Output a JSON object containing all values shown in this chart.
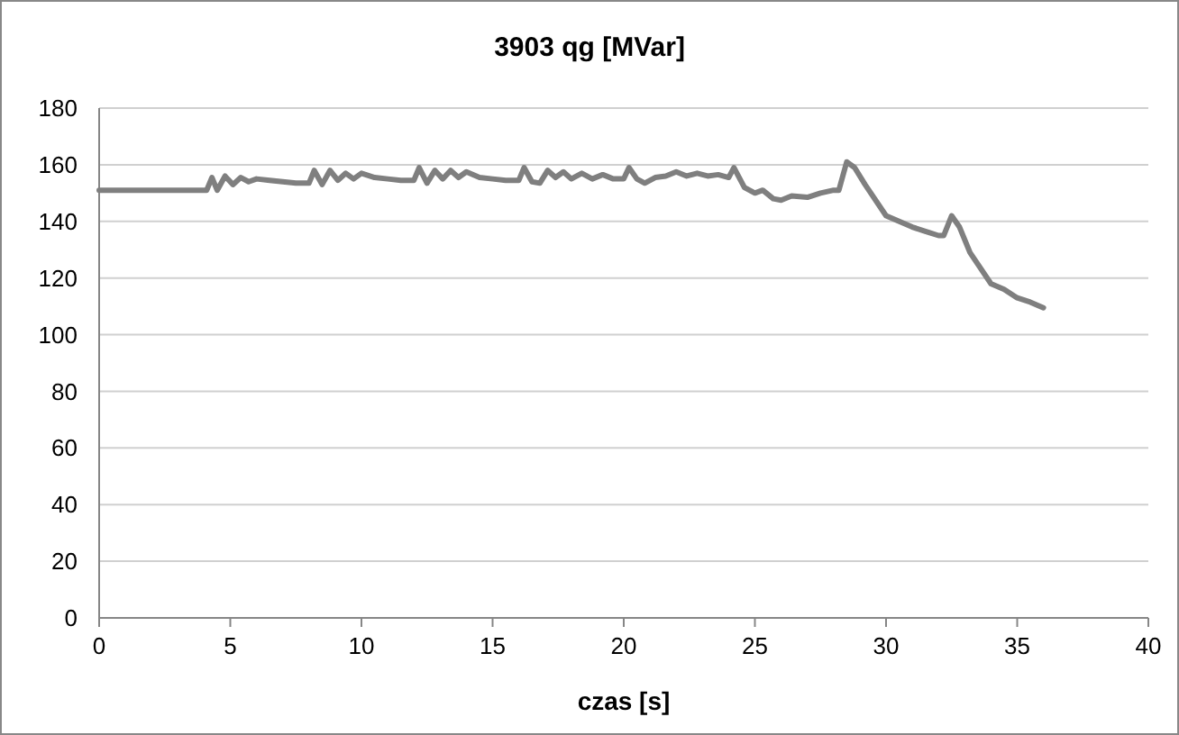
{
  "chart_data": {
    "type": "line",
    "title": "3903  qg [MVar]",
    "xlabel": "czas [s]",
    "x": [
      0,
      4.1,
      4.3,
      4.5,
      4.8,
      5.1,
      5.4,
      5.7,
      6,
      6.5,
      7,
      7.5,
      8,
      8.2,
      8.5,
      8.8,
      9.1,
      9.4,
      9.7,
      10,
      10.5,
      11,
      11.5,
      12,
      12.2,
      12.5,
      12.8,
      13.1,
      13.4,
      13.7,
      14,
      14.5,
      15,
      15.5,
      16,
      16.2,
      16.5,
      16.8,
      17.1,
      17.4,
      17.7,
      18,
      18.4,
      18.8,
      19.2,
      19.6,
      20,
      20.2,
      20.5,
      20.8,
      21.2,
      21.6,
      22,
      22.4,
      22.8,
      23.2,
      23.6,
      24,
      24.2,
      24.6,
      25,
      25.3,
      25.7,
      26,
      26.4,
      27,
      27.5,
      28,
      28.2,
      28.5,
      28.8,
      29.2,
      30,
      30.5,
      31,
      31.5,
      32,
      32.2,
      32.5,
      32.8,
      33.2,
      34,
      34.5,
      35,
      35.5,
      36
    ],
    "series": [
      {
        "color": "#7f7f7f",
        "values": [
          151,
          151,
          155.5,
          151,
          156,
          153,
          155.5,
          154,
          155,
          154.5,
          154,
          153.5,
          153.5,
          158,
          153,
          158,
          154.5,
          157,
          155,
          157,
          155.5,
          155,
          154.5,
          154.5,
          159,
          153.5,
          158,
          155,
          158,
          155.5,
          157.5,
          155.5,
          155,
          154.5,
          154.5,
          159,
          154,
          153.5,
          158,
          155.5,
          157.5,
          155,
          157,
          155,
          156.5,
          155,
          155,
          159,
          155,
          153.5,
          155.5,
          156,
          157.5,
          156,
          157,
          156,
          156.5,
          155.5,
          159,
          152,
          150,
          151,
          148,
          147.5,
          149,
          148.5,
          150,
          151,
          151,
          161,
          159,
          153,
          142,
          140,
          138,
          136.5,
          135,
          135,
          142,
          138,
          129,
          118,
          116,
          113,
          111.5,
          109.5
        ]
      }
    ],
    "xlim": [
      0,
      40
    ],
    "xticks": [
      0,
      5,
      10,
      15,
      20,
      25,
      30,
      35,
      40
    ],
    "ylim": [
      0,
      180
    ],
    "yticks": [
      0,
      20,
      40,
      60,
      80,
      100,
      120,
      140,
      160,
      180
    ],
    "grid": "y",
    "marker": "none",
    "line_style": "solid"
  }
}
